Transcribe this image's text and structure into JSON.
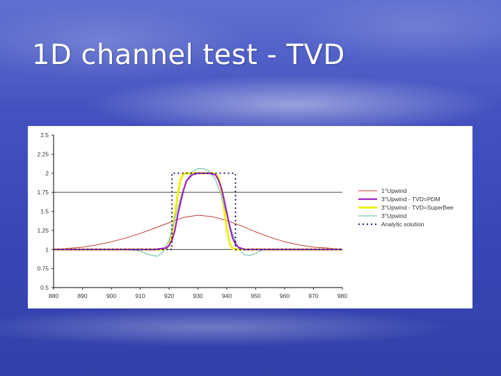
{
  "slide": {
    "title": "1D channel test - TVD"
  },
  "colors": {
    "background": "#4452c0",
    "upwind1": "#c0392b",
    "pdm": "#a020c0",
    "superbee": "#f0f000",
    "upwind3": "#7ec8b8",
    "analytic": "#1a1a66"
  },
  "chart_data": {
    "type": "line",
    "title": "",
    "xlabel": "",
    "ylabel": "",
    "xlim": [
      880,
      980
    ],
    "ylim": [
      0.5,
      2.5
    ],
    "xticks": [
      "880",
      "890",
      "900",
      "910",
      "920",
      "930",
      "940",
      "950",
      "960",
      "970",
      "980"
    ],
    "yticks": [
      "0.5",
      "0.75",
      "1",
      "1.25",
      "1.5",
      "1.75",
      "2",
      "2.25",
      "2.5"
    ],
    "grid": "horizontal lines at 1 and 1.75",
    "legend_position": "right",
    "series": [
      {
        "name": "1°Upwind",
        "style": "solid-thin",
        "x": [
          880,
          890,
          895,
          900,
          905,
          910,
          915,
          920,
          925,
          930,
          935,
          940,
          945,
          950,
          955,
          960,
          965,
          970,
          975,
          980
        ],
        "y": [
          1.0,
          1.03,
          1.06,
          1.1,
          1.15,
          1.21,
          1.28,
          1.35,
          1.42,
          1.45,
          1.43,
          1.38,
          1.31,
          1.23,
          1.16,
          1.1,
          1.06,
          1.03,
          1.02,
          1.0
        ]
      },
      {
        "name": "3°Upwind - TVD=PDM",
        "style": "solid-thick",
        "x": [
          880,
          915,
          919,
          920,
          921,
          922,
          923,
          924,
          925,
          926,
          928,
          930,
          934,
          936,
          937,
          938,
          939,
          940,
          941,
          942,
          943,
          944,
          946,
          980
        ],
        "y": [
          1.0,
          1.0,
          1.02,
          1.05,
          1.12,
          1.25,
          1.45,
          1.62,
          1.78,
          1.9,
          1.98,
          2.0,
          2.0,
          1.98,
          1.92,
          1.82,
          1.66,
          1.48,
          1.3,
          1.15,
          1.07,
          1.03,
          1.0,
          1.0
        ]
      },
      {
        "name": "3°Upwind - TVD=SuperBee",
        "style": "solid-thick",
        "x": [
          880,
          918,
          919,
          920,
          921,
          922,
          923,
          924,
          925,
          926,
          935,
          936,
          937,
          938,
          939,
          940,
          941,
          942,
          943,
          980
        ],
        "y": [
          1.0,
          1.0,
          1.01,
          1.06,
          1.2,
          1.45,
          1.72,
          1.92,
          1.99,
          2.0,
          2.0,
          1.99,
          1.95,
          1.8,
          1.55,
          1.27,
          1.08,
          1.01,
          1.0,
          1.0
        ]
      },
      {
        "name": "3°Upwind",
        "style": "solid-thin",
        "x": [
          880,
          905,
          910,
          913,
          916,
          918,
          920,
          922,
          924,
          926,
          928,
          930,
          932,
          934,
          936,
          938,
          940,
          942,
          944,
          946,
          948,
          950,
          952,
          955,
          980
        ],
        "y": [
          1.0,
          1.0,
          0.98,
          0.93,
          0.91,
          0.97,
          1.12,
          1.4,
          1.68,
          1.9,
          2.02,
          2.06,
          2.06,
          2.02,
          1.92,
          1.72,
          1.45,
          1.2,
          1.02,
          0.93,
          0.92,
          0.95,
          0.99,
          1.0,
          1.0
        ]
      },
      {
        "name": "Analytic solution",
        "style": "dotted",
        "x": [
          880,
          921,
          921,
          943,
          943,
          980
        ],
        "y": [
          1.0,
          1.0,
          2.0,
          2.0,
          1.0,
          1.0
        ]
      }
    ]
  }
}
